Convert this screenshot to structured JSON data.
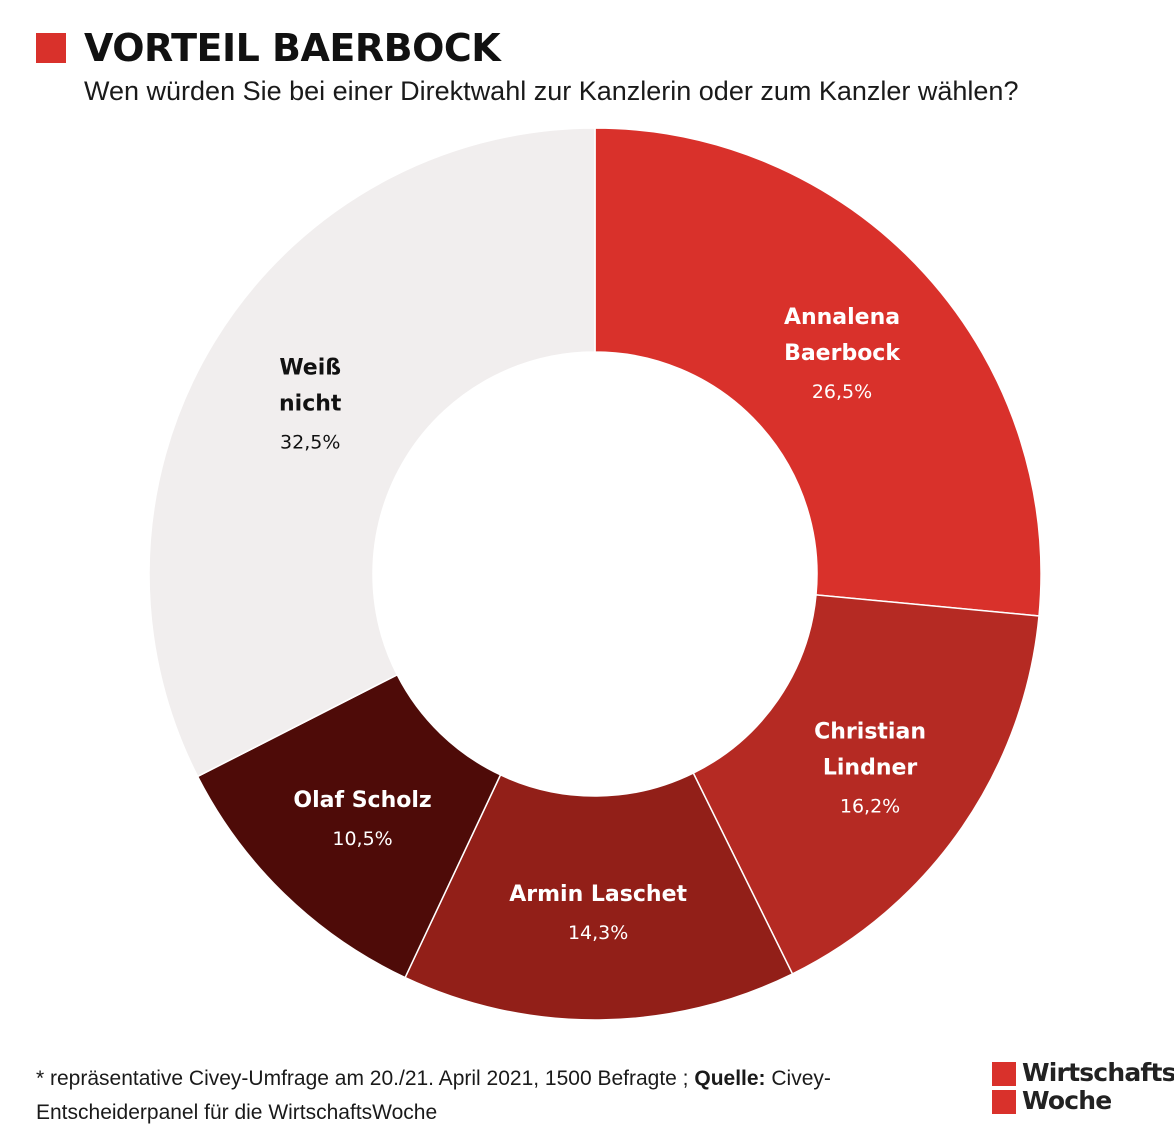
{
  "header": {
    "title": "VORTEIL BAERBOCK",
    "subtitle": "Wen würden Sie bei einer Direktwahl zur Kanzlerin oder zum Kanzler wählen?"
  },
  "chart_data": {
    "type": "pie",
    "donut": true,
    "categories": [
      "Annalena Baerbock",
      "Christian Lindner",
      "Armin Laschet",
      "Olaf Scholz",
      "Weiß nicht"
    ],
    "label_lines": [
      [
        "Annalena",
        "Baerbock"
      ],
      [
        "Christian",
        "Lindner"
      ],
      [
        "Armin Laschet"
      ],
      [
        "Olaf Scholz"
      ],
      [
        "Weiß",
        "nicht"
      ]
    ],
    "values": [
      26.5,
      16.2,
      14.3,
      10.5,
      32.5
    ],
    "value_labels": [
      "26,5%",
      "16,2%",
      "14,3%",
      "10,5%",
      "32,5%"
    ],
    "colors": [
      "#d9312b",
      "#b52a23",
      "#921f18",
      "#4e0b08",
      "#f1eeee"
    ],
    "label_colors": [
      "#ffffff",
      "#ffffff",
      "#ffffff",
      "#ffffff",
      "#111111"
    ]
  },
  "footer": {
    "note_prefix": "* repräsentative Civey-Umfrage am 20./21. April 2021, 1500 Befragte ; ",
    "source_label": "Quelle:",
    "source_text": " Civey-Entscheiderpanel für die WirtschaftsWoche"
  },
  "logo": {
    "line1": "Wirtschafts",
    "line2": "Woche",
    "color": "#d9312b"
  }
}
